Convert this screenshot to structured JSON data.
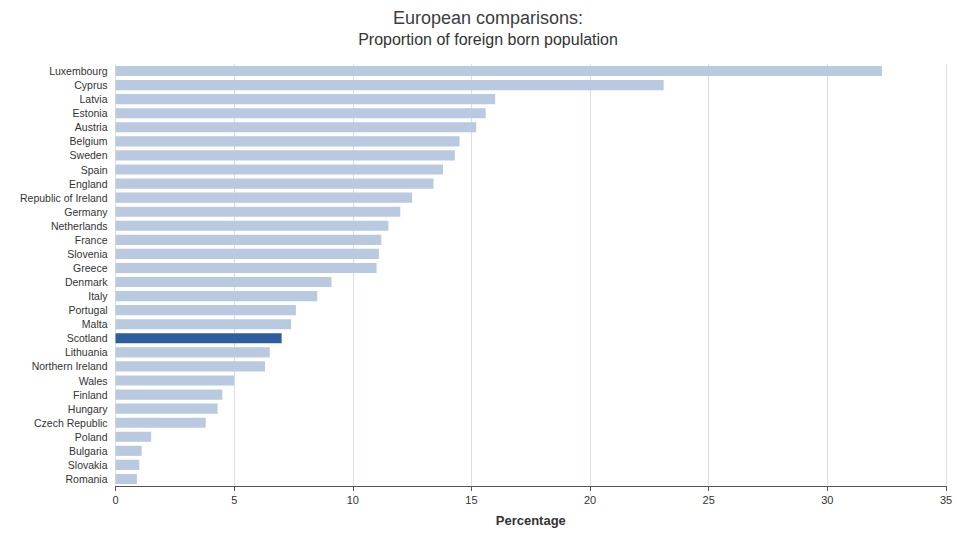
{
  "chart_data": {
    "type": "bar",
    "orientation": "horizontal",
    "title": "European comparisons:",
    "subtitle": "Proportion of foreign born population",
    "xlabel": "Percentage",
    "categories": [
      "Romania",
      "Slovakia",
      "Bulgaria",
      "Poland",
      "Czech Republic",
      "Hungary",
      "Finland",
      "Wales",
      "Northern Ireland",
      "Lithuania",
      "Scotland",
      "Malta",
      "Portugal",
      "Italy",
      "Denmark",
      "Greece",
      "Slovenia",
      "France",
      "Netherlands",
      "Germany",
      "Republic of Ireland",
      "England",
      "Spain",
      "Sweden",
      "Belgium",
      "Austria",
      "Estonia",
      "Latvia",
      "Cyprus",
      "Luxembourg"
    ],
    "values": [
      0.9,
      1.0,
      1.1,
      1.5,
      3.8,
      4.3,
      4.5,
      5.0,
      6.3,
      6.5,
      7.0,
      7.4,
      7.6,
      8.5,
      9.1,
      11.0,
      11.1,
      11.2,
      11.5,
      12.0,
      12.5,
      13.4,
      13.8,
      14.3,
      14.5,
      15.2,
      15.6,
      16.0,
      23.1,
      32.3
    ],
    "colors": [
      "#b8c9e0",
      "#b8c9e0",
      "#b8c9e0",
      "#b8c9e0",
      "#b8c9e0",
      "#b8c9e0",
      "#b8c9e0",
      "#b8c9e0",
      "#b8c9e0",
      "#b8c9e0",
      "#2d5f9e",
      "#b8c9e0",
      "#b8c9e0",
      "#b8c9e0",
      "#b8c9e0",
      "#b8c9e0",
      "#b8c9e0",
      "#b8c9e0",
      "#b8c9e0",
      "#b8c9e0",
      "#b8c9e0",
      "#b8c9e0",
      "#b8c9e0",
      "#b8c9e0",
      "#b8c9e0",
      "#b8c9e0",
      "#b8c9e0",
      "#b8c9e0",
      "#b8c9e0",
      "#b8c9e0"
    ],
    "xlim": [
      0,
      35
    ],
    "xticks": [
      0,
      5,
      10,
      15,
      20,
      25,
      30,
      35
    ],
    "grid": true
  }
}
